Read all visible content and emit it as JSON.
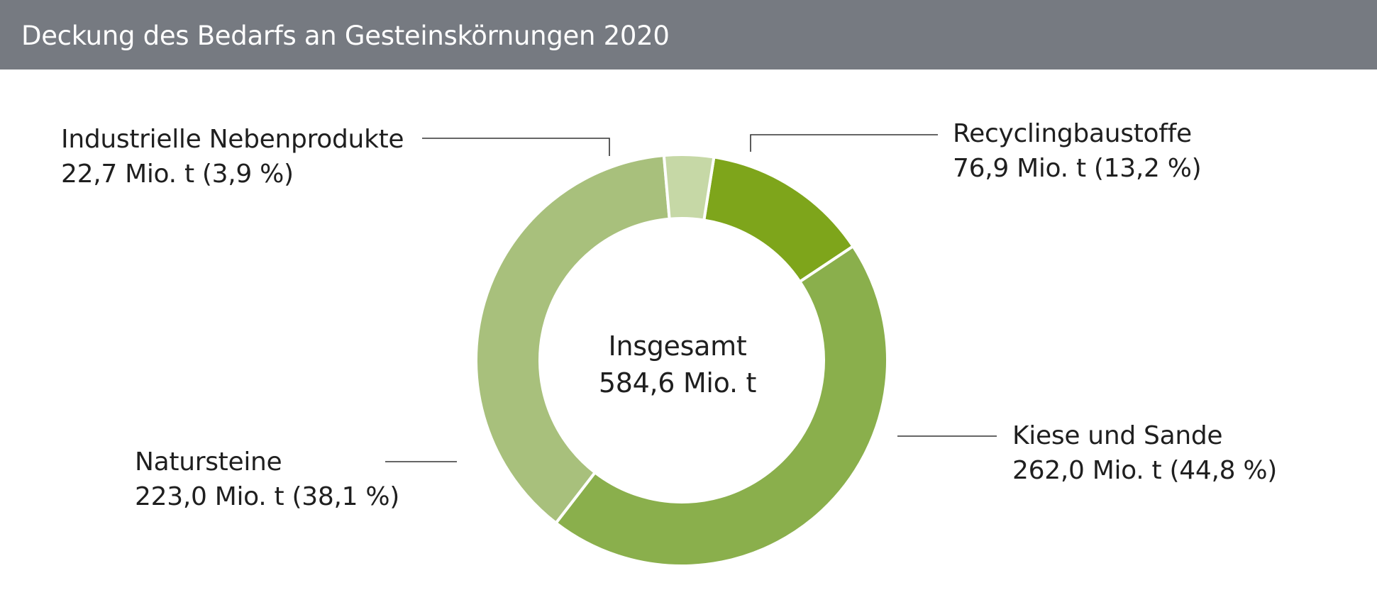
{
  "header": {
    "title": "Deckung des Bedarfs an Gesteinskörnungen 2020"
  },
  "chart_data": {
    "type": "pie",
    "title": "Deckung des Bedarfs an Gesteinskörnungen 2020",
    "center": {
      "label": "Insgesamt",
      "value_text": "584,6 Mio. t"
    },
    "total": 584.6,
    "unit": "Mio. t",
    "slices": [
      {
        "name": "Recyclingbaustoffe",
        "value": 76.9,
        "percent": 13.2,
        "value_text": "76,9 Mio. t (13,2 %)",
        "color": "#7ea51b"
      },
      {
        "name": "Kiese und Sande",
        "value": 262.0,
        "percent": 44.8,
        "value_text": "262,0 Mio. t (44,8 %)",
        "color": "#8aaf4c"
      },
      {
        "name": "Natursteine",
        "value": 223.0,
        "percent": 38.1,
        "value_text": "223,0 Mio. t (38,1 %)",
        "color": "#a8c07c"
      },
      {
        "name": "Industrielle Nebenprodukte",
        "value": 22.7,
        "percent": 3.9,
        "value_text": "22,7 Mio. t (3,9 %)",
        "color": "#c6d8a6"
      }
    ]
  }
}
